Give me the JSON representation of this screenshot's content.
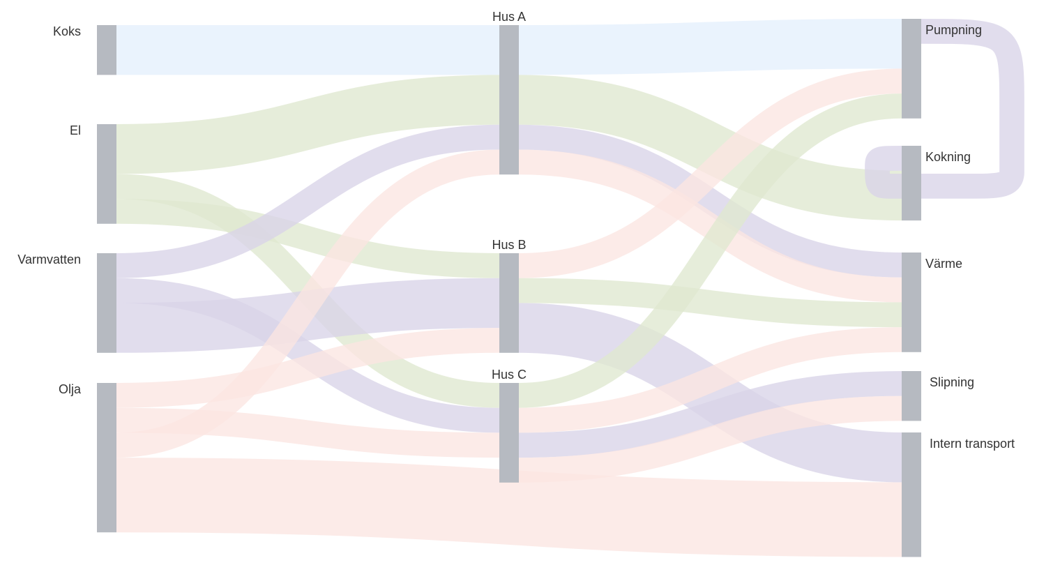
{
  "nodes": [
    {
      "id": "koks",
      "label": "Koks"
    },
    {
      "id": "el",
      "label": "El"
    },
    {
      "id": "varmvatten",
      "label": "Varmvatten"
    },
    {
      "id": "olja",
      "label": "Olja"
    },
    {
      "id": "husA",
      "label": "Hus A"
    },
    {
      "id": "husB",
      "label": "Hus B"
    },
    {
      "id": "husC",
      "label": "Hus C"
    },
    {
      "id": "pumpning",
      "label": "Pumpning"
    },
    {
      "id": "kokning",
      "label": "Kokning"
    },
    {
      "id": "varme",
      "label": "Värme"
    },
    {
      "id": "slipning",
      "label": "Slipning"
    },
    {
      "id": "intern",
      "label": "Intern transport"
    }
  ],
  "flows": [
    {
      "source": "koks",
      "target": "husA",
      "value": 2,
      "color": "#e4effc"
    },
    {
      "source": "el",
      "target": "husA",
      "value": 2,
      "color": "#dfe8d0"
    },
    {
      "source": "el",
      "target": "husC",
      "value": 1,
      "color": "#dfe8d0"
    },
    {
      "source": "el",
      "target": "husB",
      "value": 1,
      "color": "#dfe8d0"
    },
    {
      "source": "varmvatten",
      "target": "husA",
      "value": 1,
      "color": "#d8d4e8"
    },
    {
      "source": "varmvatten",
      "target": "husC",
      "value": 1,
      "color": "#d8d4e8"
    },
    {
      "source": "varmvatten",
      "target": "husB",
      "value": 2,
      "color": "#d8d4e8"
    },
    {
      "source": "olja",
      "target": "husB",
      "value": 1,
      "color": "#fbe5e2"
    },
    {
      "source": "olja",
      "target": "husC",
      "value": 1,
      "color": "#fbe5e2"
    },
    {
      "source": "olja",
      "target": "husA",
      "value": 1,
      "color": "#fbe5e2"
    },
    {
      "source": "olja",
      "target": "intern",
      "value": 3,
      "color": "#fbe5e2"
    },
    {
      "source": "husA",
      "target": "pumpning",
      "value": 2,
      "color": "#e4effc"
    },
    {
      "source": "husA",
      "target": "kokning",
      "value": 2,
      "color": "#dfe8d0"
    },
    {
      "source": "husA",
      "target": "varme",
      "value": 1,
      "color": "#d8d4e8"
    },
    {
      "source": "husA",
      "target": "varme",
      "value": 1,
      "color": "#fbe5e2"
    },
    {
      "source": "husB",
      "target": "pumpning",
      "value": 1,
      "color": "#fbe5e2"
    },
    {
      "source": "husB",
      "target": "varme",
      "value": 1,
      "color": "#dfe8d0"
    },
    {
      "source": "husB",
      "target": "intern",
      "value": 2,
      "color": "#d8d4e8"
    },
    {
      "source": "husC",
      "target": "pumpning",
      "value": 1,
      "color": "#dfe8d0"
    },
    {
      "source": "husC",
      "target": "varme",
      "value": 1,
      "color": "#fbe5e2"
    },
    {
      "source": "husC",
      "target": "slipning",
      "value": 1,
      "color": "#d8d4e8"
    },
    {
      "source": "husC",
      "target": "slipning",
      "value": 1,
      "color": "#fbe5e2"
    },
    {
      "source": "pumpning",
      "target": "kokning",
      "value": 1,
      "color": "#d8d4e8"
    }
  ],
  "colors": {
    "node": "#b6bac1",
    "koks_flow": "#e4effc",
    "el_flow": "#dfe8d0",
    "varmvatten_flow": "#d8d4e8",
    "olja_flow": "#fbe5e2"
  }
}
